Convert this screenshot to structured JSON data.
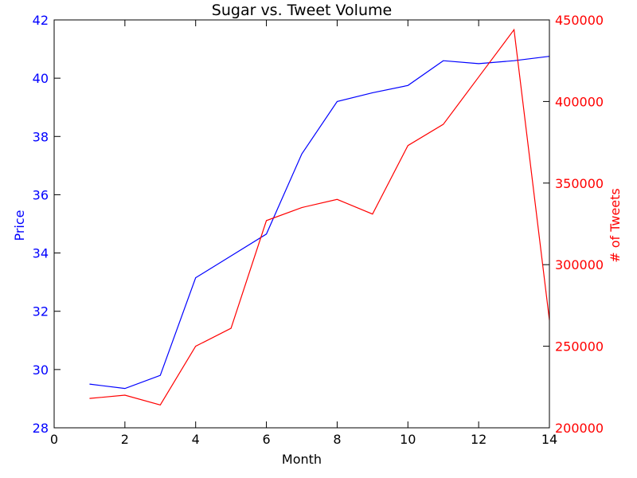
{
  "chart_data": {
    "type": "line",
    "title": "Sugar vs. Tweet Volume",
    "xlabel": "Month",
    "ylabel": "Price",
    "y2label": "# of Tweets",
    "xlim": [
      0,
      14
    ],
    "ylim": [
      28,
      42
    ],
    "y2lim": [
      200000,
      450000
    ],
    "x_ticks": [
      "0",
      "2",
      "4",
      "6",
      "8",
      "10",
      "12",
      "14"
    ],
    "y_ticks": [
      "28",
      "30",
      "32",
      "34",
      "36",
      "38",
      "40",
      "42"
    ],
    "y2_ticks": [
      "200000",
      "250000",
      "300000",
      "350000",
      "400000",
      "450000"
    ],
    "grid": false,
    "colors": {
      "price": "#0000ff",
      "tweets": "#ff0000",
      "axis": "#000000"
    },
    "series": [
      {
        "axis": "left",
        "color": "#0000ff",
        "x": [
          1,
          2,
          3,
          4,
          5,
          6,
          7,
          8,
          9,
          10,
          11,
          12,
          13,
          14
        ],
        "values": [
          29.5,
          29.35,
          29.8,
          33.15,
          33.9,
          34.65,
          37.4,
          39.2,
          39.5,
          39.75,
          40.6,
          40.5,
          40.6,
          40.75
        ]
      },
      {
        "axis": "right",
        "color": "#ff0000",
        "x": [
          1,
          2,
          3,
          4,
          5,
          6,
          7,
          8,
          9,
          10,
          11,
          12,
          13,
          14
        ],
        "values": [
          218000,
          220000,
          214000,
          250000,
          261000,
          327000,
          335000,
          340000,
          331000,
          373000,
          386000,
          415000,
          444000,
          266000
        ]
      }
    ]
  }
}
